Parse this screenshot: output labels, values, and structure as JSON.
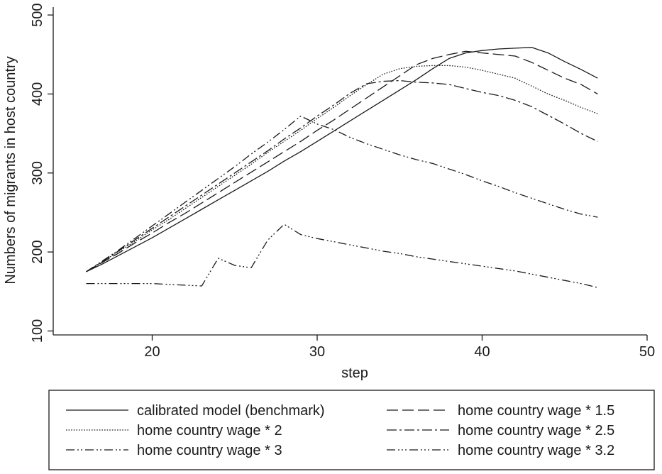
{
  "chart_data": {
    "type": "line",
    "title": "",
    "xlabel": "step",
    "ylabel": "Numbers of migrants in host country",
    "xlim": [
      14,
      50
    ],
    "ylim": [
      95,
      510
    ],
    "x_ticks": [
      20,
      30,
      40,
      50
    ],
    "y_ticks": [
      100,
      200,
      300,
      400,
      500
    ],
    "grid": false,
    "legend_position": "bottom",
    "line_color": "#1a1a1a",
    "series": [
      {
        "name": "calibrated model (benchmark)",
        "dash": "solid",
        "x": [
          16,
          17,
          18,
          19,
          20,
          21,
          22,
          23,
          24,
          25,
          26,
          27,
          28,
          29,
          30,
          31,
          32,
          33,
          34,
          35,
          36,
          37,
          38,
          39,
          40,
          41,
          42,
          43,
          44,
          45,
          46,
          47
        ],
        "y": [
          175,
          185,
          196,
          207,
          218,
          230,
          242,
          254,
          266,
          278,
          290,
          302,
          315,
          327,
          340,
          353,
          366,
          379,
          392,
          405,
          418,
          432,
          445,
          452,
          455,
          457,
          458,
          459,
          452,
          441,
          431,
          420
        ]
      },
      {
        "name": "home country wage * 1.5",
        "dash": "longdash",
        "x": [
          16,
          17,
          18,
          19,
          20,
          21,
          22,
          23,
          24,
          25,
          26,
          27,
          28,
          29,
          30,
          31,
          32,
          33,
          34,
          35,
          36,
          37,
          38,
          39,
          40,
          41,
          42,
          43,
          44,
          45,
          46,
          47
        ],
        "y": [
          175,
          187,
          199,
          212,
          224,
          237,
          249,
          262,
          275,
          288,
          301,
          314,
          327,
          340,
          354,
          367,
          381,
          395,
          409,
          423,
          437,
          445,
          450,
          454,
          452,
          450,
          448,
          440,
          430,
          420,
          412,
          400
        ]
      },
      {
        "name": "home country wage * 2",
        "dash": "dot",
        "x": [
          16,
          17,
          18,
          19,
          20,
          21,
          22,
          23,
          24,
          25,
          26,
          27,
          28,
          29,
          30,
          31,
          32,
          33,
          34,
          35,
          36,
          37,
          38,
          39,
          40,
          41,
          42,
          43,
          44,
          45,
          46,
          47
        ],
        "y": [
          175,
          188,
          201,
          214,
          228,
          241,
          255,
          269,
          283,
          297,
          311,
          326,
          340,
          354,
          369,
          383,
          398,
          412,
          425,
          432,
          435,
          436,
          436,
          434,
          430,
          425,
          420,
          410,
          400,
          392,
          383,
          375
        ]
      },
      {
        "name": "home country wage * 2.5",
        "dash": "dashdot",
        "x": [
          16,
          17,
          18,
          19,
          20,
          21,
          22,
          23,
          24,
          25,
          26,
          27,
          28,
          29,
          30,
          31,
          32,
          33,
          34,
          35,
          36,
          37,
          38,
          39,
          40,
          41,
          42,
          43,
          44,
          45,
          46,
          47
        ],
        "y": [
          175,
          188,
          202,
          216,
          230,
          244,
          258,
          272,
          286,
          300,
          314,
          328,
          343,
          357,
          372,
          386,
          401,
          413,
          416,
          417,
          415,
          414,
          412,
          407,
          402,
          398,
          392,
          384,
          373,
          362,
          350,
          340
        ]
      },
      {
        "name": "home country wage * 3",
        "dash": "dashdotdot",
        "x": [
          16,
          17,
          18,
          19,
          20,
          21,
          22,
          23,
          24,
          25,
          26,
          27,
          28,
          29,
          30,
          31,
          32,
          33,
          34,
          35,
          36,
          37,
          38,
          39,
          40,
          41,
          42,
          43,
          44,
          45,
          46,
          47
        ],
        "y": [
          175,
          189,
          203,
          218,
          233,
          248,
          263,
          278,
          293,
          308,
          324,
          339,
          355,
          372,
          362,
          355,
          345,
          337,
          330,
          323,
          317,
          312,
          305,
          298,
          290,
          283,
          275,
          268,
          261,
          254,
          248,
          244
        ]
      },
      {
        "name": "home country wage * 3.2",
        "dash": "dashdotdotdot",
        "x": [
          16,
          17,
          18,
          19,
          20,
          21,
          22,
          23,
          24,
          25,
          26,
          27,
          28,
          29,
          30,
          31,
          32,
          33,
          34,
          35,
          36,
          37,
          38,
          39,
          40,
          41,
          42,
          43,
          44,
          45,
          46,
          47
        ],
        "y": [
          160,
          160,
          160,
          160,
          160,
          159,
          158,
          157,
          192,
          183,
          180,
          215,
          235,
          222,
          217,
          213,
          209,
          205,
          201,
          198,
          194,
          191,
          188,
          185,
          182,
          179,
          176,
          172,
          168,
          164,
          160,
          155
        ]
      }
    ]
  }
}
